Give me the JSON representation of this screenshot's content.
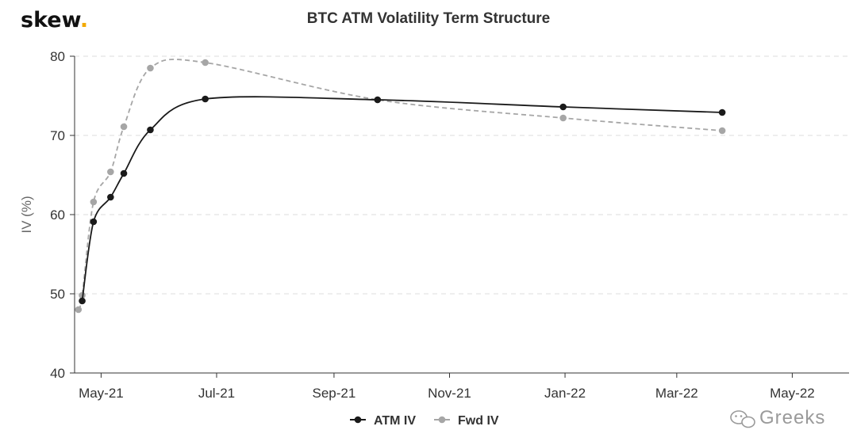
{
  "brand": {
    "name": "skew",
    "dot": ".",
    "dot_color": "#f2a900"
  },
  "watermark": {
    "icon": "wechat-icon",
    "text": "Greeks"
  },
  "chart_data": {
    "type": "line",
    "title": "BTC ATM Volatility Term Structure",
    "xlabel": "",
    "ylabel": "IV (%)",
    "x_type": "date",
    "xlim": [
      "2021-04-17",
      "2022-05-31"
    ],
    "ylim": [
      40,
      80
    ],
    "yticks": [
      40,
      50,
      60,
      70,
      80
    ],
    "xticks": [
      {
        "label": "May-21",
        "date": "2021-05-01"
      },
      {
        "label": "Jul-21",
        "date": "2021-07-01"
      },
      {
        "label": "Sep-21",
        "date": "2021-09-01"
      },
      {
        "label": "Nov-21",
        "date": "2021-11-01"
      },
      {
        "label": "Jan-22",
        "date": "2022-01-01"
      },
      {
        "label": "Mar-22",
        "date": "2022-03-01"
      },
      {
        "label": "May-22",
        "date": "2022-05-01"
      }
    ],
    "grid": {
      "horizontal": true,
      "vertical": false
    },
    "legend_position": "bottom-center",
    "series": [
      {
        "name": "ATM IV",
        "color": "#1a1a1a",
        "dashed": false,
        "points": [
          {
            "x": "2021-04-21",
            "y": 49.1
          },
          {
            "x": "2021-04-27",
            "y": 59.1
          },
          {
            "x": "2021-05-06",
            "y": 62.2
          },
          {
            "x": "2021-05-13",
            "y": 65.2
          },
          {
            "x": "2021-05-27",
            "y": 70.7
          },
          {
            "x": "2021-06-25",
            "y": 74.6
          },
          {
            "x": "2021-09-24",
            "y": 74.5
          },
          {
            "x": "2021-12-31",
            "y": 73.6
          },
          {
            "x": "2022-03-25",
            "y": 72.9
          }
        ]
      },
      {
        "name": "Fwd IV",
        "color": "#a6a6a6",
        "dashed": true,
        "points": [
          {
            "x": "2021-04-19",
            "y": 48.0
          },
          {
            "x": "2021-04-21",
            "y": 49.8
          },
          {
            "x": "2021-04-27",
            "y": 61.6
          },
          {
            "x": "2021-05-06",
            "y": 65.4
          },
          {
            "x": "2021-05-13",
            "y": 71.1
          },
          {
            "x": "2021-05-27",
            "y": 78.5
          },
          {
            "x": "2021-06-25",
            "y": 79.2
          },
          {
            "x": "2021-09-24",
            "y": 74.5
          },
          {
            "x": "2021-12-31",
            "y": 72.2
          },
          {
            "x": "2022-03-25",
            "y": 70.6
          }
        ]
      }
    ]
  }
}
